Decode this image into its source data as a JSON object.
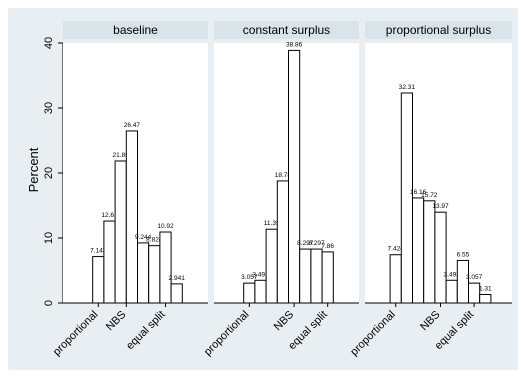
{
  "chart_data": {
    "type": "bar",
    "ylabel": "Percent",
    "ylim": [
      0,
      40
    ],
    "yticks": [
      0,
      10,
      20,
      30,
      40
    ],
    "grid": false,
    "legend": "none",
    "bar_fill": "#ffffff",
    "bar_stroke": "#000000",
    "panel_header_fill": "#d9e3ea",
    "outer_background": "#e8eef2",
    "tick_labels": [
      "proportional",
      "NBS",
      "equal split"
    ],
    "panels": [
      {
        "title": "baseline",
        "values": [
          7.143,
          12.61,
          21.85,
          26.47,
          9.244,
          8.824,
          10.92,
          2.941
        ]
      },
      {
        "title": "constant surplus",
        "values": [
          3.057,
          3.493,
          11.35,
          18.78,
          38.86,
          8.297,
          8.297,
          7.86
        ]
      },
      {
        "title": "proportional surplus",
        "values": [
          7.424,
          32.31,
          16.16,
          15.72,
          13.97,
          3.493,
          6.55,
          3.057,
          1.31
        ]
      }
    ]
  }
}
